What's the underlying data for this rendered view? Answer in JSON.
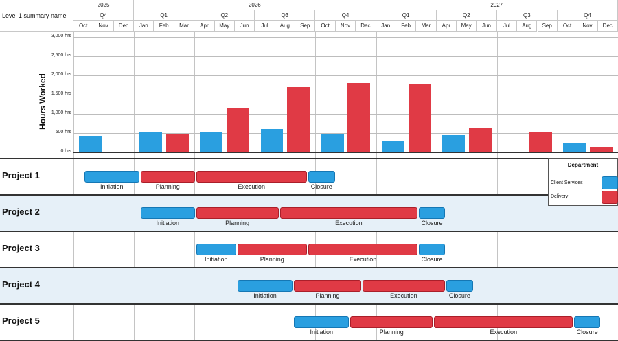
{
  "header": {
    "corner_label": "Level 1 summary name",
    "years": [
      {
        "label": "2025",
        "start": 0,
        "span": 3
      },
      {
        "label": "2026",
        "start": 3,
        "span": 12
      },
      {
        "label": "2027",
        "start": 15,
        "span": 12
      }
    ],
    "quarters": [
      {
        "label": "Q4",
        "start": 0,
        "span": 3
      },
      {
        "label": "Q1",
        "start": 3,
        "span": 3
      },
      {
        "label": "Q2",
        "start": 6,
        "span": 3
      },
      {
        "label": "Q3",
        "start": 9,
        "span": 3
      },
      {
        "label": "Q4",
        "start": 12,
        "span": 3
      },
      {
        "label": "Q1",
        "start": 15,
        "span": 3
      },
      {
        "label": "Q2",
        "start": 18,
        "span": 3
      },
      {
        "label": "Q3",
        "start": 21,
        "span": 3
      },
      {
        "label": "Q4",
        "start": 24,
        "span": 3
      }
    ],
    "months": [
      "Oct",
      "Nov",
      "Dec",
      "Jan",
      "Feb",
      "Mar",
      "Apr",
      "May",
      "Jun",
      "Jul",
      "Aug",
      "Sep",
      "Oct",
      "Nov",
      "Dec",
      "Jan",
      "Feb",
      "Mar",
      "Apr",
      "May",
      "Jun",
      "Jul",
      "Aug",
      "Sep",
      "Oct",
      "Nov",
      "Dec"
    ]
  },
  "chart_data": {
    "type": "bar",
    "ylabel": "Hours Worked",
    "ylim": [
      0,
      3000
    ],
    "yticks": [
      "0 hrs",
      "500 hrs",
      "1,000 hrs",
      "1,500 hrs",
      "2,000 hrs",
      "2,500 hrs",
      "3,000 hrs"
    ],
    "ytick_values": [
      0,
      500,
      1000,
      1500,
      2000,
      2500,
      3000
    ],
    "categories": [
      "Q4 2025",
      "Q1 2026",
      "Q2 2026",
      "Q3 2026",
      "Q4 2026",
      "Q1 2027",
      "Q2 2027",
      "Q3 2027",
      "Q4 2027"
    ],
    "series": [
      {
        "name": "Client Services",
        "color": "#2a9fe0",
        "values": [
          430,
          510,
          520,
          600,
          470,
          290,
          440,
          0,
          250
        ]
      },
      {
        "name": "Delivery",
        "color": "#e03a45",
        "values": [
          0,
          460,
          1160,
          1700,
          1810,
          1760,
          620,
          540,
          140
        ]
      }
    ]
  },
  "gantt": {
    "rows": [
      {
        "name": "Project 1",
        "shaded": false,
        "bars": [
          {
            "label": "Initiation",
            "dept": "blue",
            "start": 0.5,
            "end": 3.3
          },
          {
            "label": "Planning",
            "dept": "red",
            "start": 3.3,
            "end": 6.05
          },
          {
            "label": "Execution",
            "dept": "red",
            "start": 6.05,
            "end": 11.6
          },
          {
            "label": "Closure",
            "dept": "blue",
            "start": 11.6,
            "end": 13.0
          }
        ]
      },
      {
        "name": "Project 2",
        "shaded": true,
        "bars": [
          {
            "label": "Initiation",
            "dept": "blue",
            "start": 3.3,
            "end": 6.05
          },
          {
            "label": "Planning",
            "dept": "red",
            "start": 6.05,
            "end": 10.2
          },
          {
            "label": "Execution",
            "dept": "red",
            "start": 10.2,
            "end": 17.1
          },
          {
            "label": "Closure",
            "dept": "blue",
            "start": 17.1,
            "end": 18.45
          }
        ]
      },
      {
        "name": "Project 3",
        "shaded": false,
        "bars": [
          {
            "label": "Initiation",
            "dept": "blue",
            "start": 6.05,
            "end": 8.1
          },
          {
            "label": "Planning",
            "dept": "red",
            "start": 8.1,
            "end": 11.6
          },
          {
            "label": "Execution",
            "dept": "red",
            "start": 11.6,
            "end": 17.1
          },
          {
            "label": "Closure",
            "dept": "blue",
            "start": 17.1,
            "end": 18.45
          }
        ]
      },
      {
        "name": "Project 4",
        "shaded": true,
        "bars": [
          {
            "label": "Initiation",
            "dept": "blue",
            "start": 8.1,
            "end": 10.9
          },
          {
            "label": "Planning",
            "dept": "red",
            "start": 10.9,
            "end": 14.3
          },
          {
            "label": "Execution",
            "dept": "red",
            "start": 14.3,
            "end": 18.45
          },
          {
            "label": "Closure",
            "dept": "blue",
            "start": 18.45,
            "end": 19.85
          }
        ]
      },
      {
        "name": "Project 5",
        "shaded": false,
        "bars": [
          {
            "label": "Initiation",
            "dept": "blue",
            "start": 10.9,
            "end": 13.7
          },
          {
            "label": "Planning",
            "dept": "red",
            "start": 13.7,
            "end": 17.85
          },
          {
            "label": "Execution",
            "dept": "red",
            "start": 17.85,
            "end": 24.8
          },
          {
            "label": "Closure",
            "dept": "blue",
            "start": 24.8,
            "end": 26.15
          }
        ]
      }
    ]
  },
  "legend": {
    "title": "Department",
    "items": [
      {
        "label": "Client Services",
        "color": "#2a9fe0"
      },
      {
        "label": "Delivery",
        "color": "#e03a45"
      }
    ]
  },
  "colors": {
    "blue": "#2a9fe0",
    "red": "#e03a45",
    "row_shade": "#e6f0f8"
  }
}
